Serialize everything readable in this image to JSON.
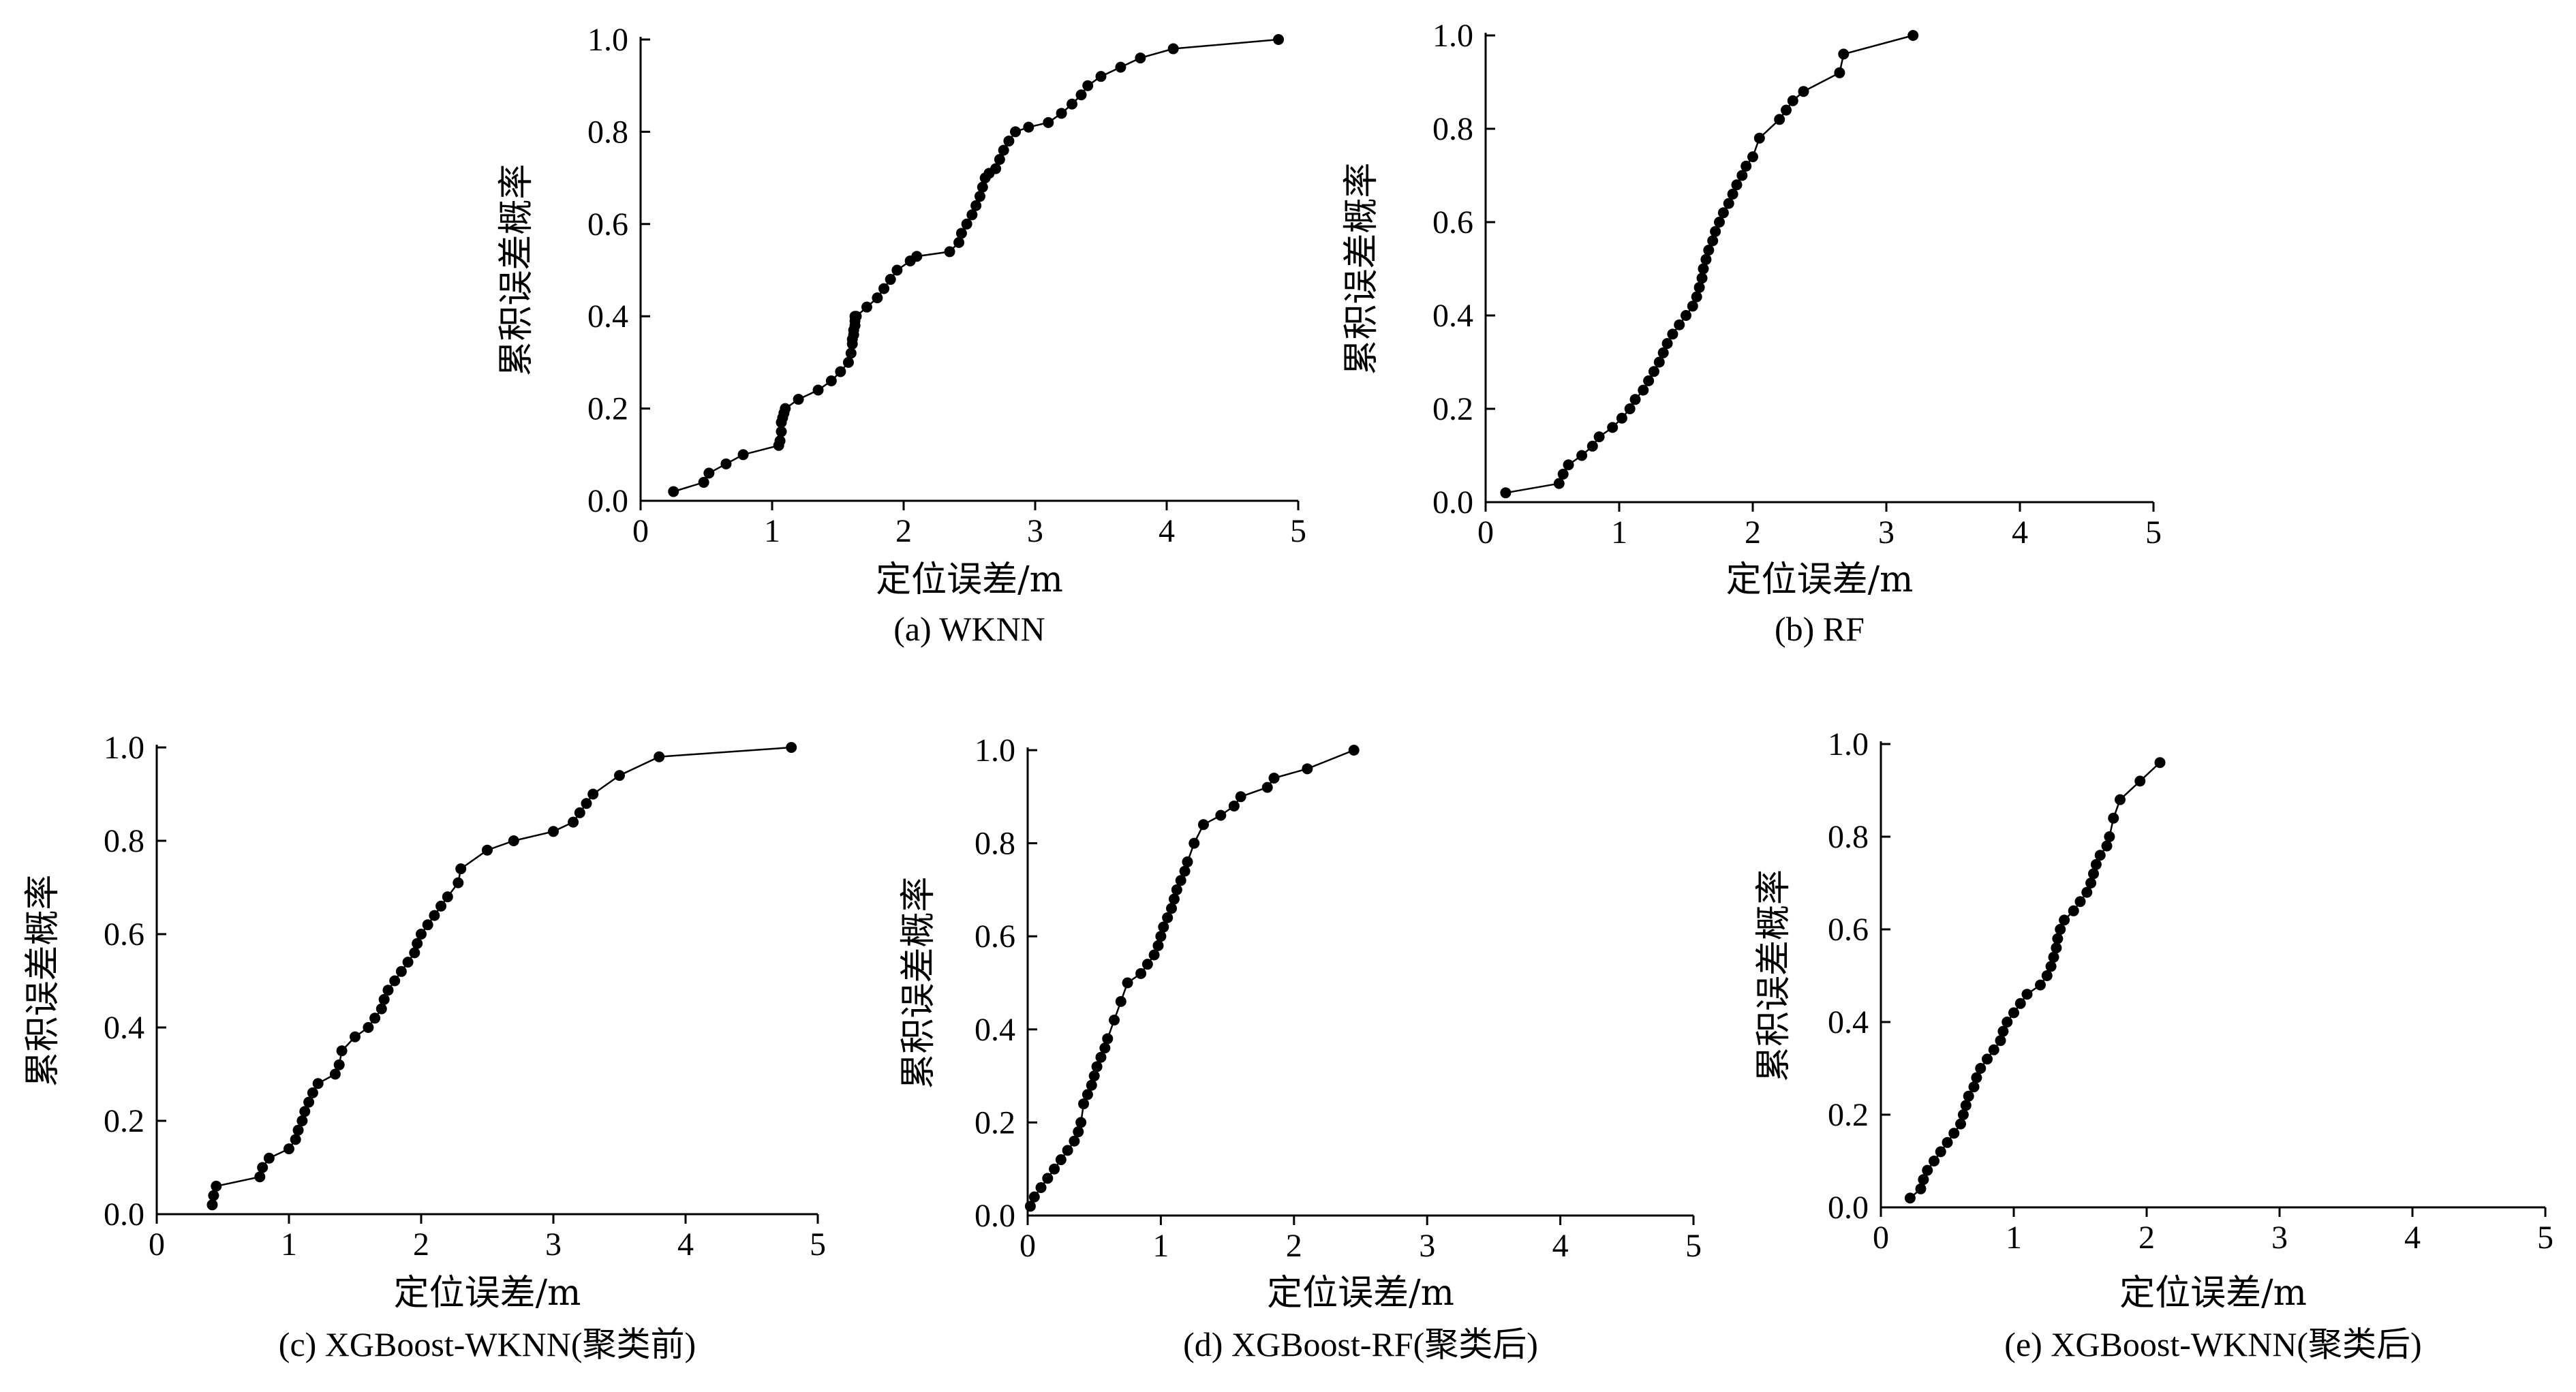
{
  "chart_data": [
    {
      "type": "line",
      "caption": "(a) WKNN",
      "xlabel": "定位误差/m",
      "ylabel": "累积误差概率",
      "xlim": [
        0,
        5
      ],
      "ylim": [
        0,
        1
      ],
      "xticks": [
        "0",
        "1",
        "2",
        "3",
        "4",
        "5"
      ],
      "yticks": [
        "0.0",
        "0.2",
        "0.4",
        "0.6",
        "0.8",
        "1.0"
      ],
      "marker": "circle",
      "series": [
        {
          "x": [
            0.25,
            0.48,
            0.52,
            0.65,
            0.78,
            1.05,
            1.06,
            1.07,
            1.07,
            1.08,
            1.09,
            1.1,
            1.2,
            1.35,
            1.45,
            1.52,
            1.58,
            1.6,
            1.61,
            1.61,
            1.62,
            1.62,
            1.63,
            1.63,
            1.63,
            1.64,
            1.72,
            1.8,
            1.85,
            1.9,
            1.95,
            2.05,
            2.1,
            2.35,
            2.42,
            2.44,
            2.48,
            2.52,
            2.55,
            2.58,
            2.6,
            2.62,
            2.65,
            2.7,
            2.73,
            2.76,
            2.8,
            2.85,
            2.95,
            3.1,
            3.2,
            3.28,
            3.35,
            3.4,
            3.5,
            3.65,
            3.8,
            4.05,
            4.85
          ],
          "y": [
            0.02,
            0.04,
            0.06,
            0.08,
            0.1,
            0.12,
            0.13,
            0.15,
            0.17,
            0.18,
            0.19,
            0.2,
            0.22,
            0.24,
            0.26,
            0.28,
            0.3,
            0.32,
            0.34,
            0.35,
            0.36,
            0.37,
            0.38,
            0.39,
            0.4,
            0.4,
            0.42,
            0.44,
            0.46,
            0.48,
            0.5,
            0.52,
            0.53,
            0.54,
            0.56,
            0.58,
            0.6,
            0.62,
            0.64,
            0.66,
            0.68,
            0.7,
            0.71,
            0.72,
            0.74,
            0.76,
            0.78,
            0.8,
            0.81,
            0.82,
            0.84,
            0.86,
            0.88,
            0.9,
            0.92,
            0.94,
            0.96,
            0.98,
            1.0
          ]
        }
      ]
    },
    {
      "type": "line",
      "caption": "(b) RF",
      "xlabel": "定位误差/m",
      "ylabel": "累积误差概率",
      "xlim": [
        0,
        5
      ],
      "ylim": [
        0,
        1
      ],
      "xticks": [
        "0",
        "1",
        "2",
        "3",
        "4",
        "5"
      ],
      "yticks": [
        "0.0",
        "0.2",
        "0.4",
        "0.6",
        "0.8",
        "1.0"
      ],
      "marker": "circle",
      "series": [
        {
          "x": [
            0.15,
            0.55,
            0.58,
            0.62,
            0.72,
            0.8,
            0.85,
            0.95,
            1.02,
            1.08,
            1.12,
            1.18,
            1.22,
            1.26,
            1.3,
            1.33,
            1.36,
            1.4,
            1.45,
            1.5,
            1.55,
            1.58,
            1.6,
            1.62,
            1.63,
            1.65,
            1.67,
            1.7,
            1.72,
            1.75,
            1.78,
            1.82,
            1.85,
            1.88,
            1.92,
            1.95,
            2.0,
            2.05,
            2.2,
            2.25,
            2.3,
            2.38,
            2.65,
            2.68,
            3.2
          ],
          "y": [
            0.02,
            0.04,
            0.06,
            0.08,
            0.1,
            0.12,
            0.14,
            0.16,
            0.18,
            0.2,
            0.22,
            0.24,
            0.26,
            0.28,
            0.3,
            0.32,
            0.34,
            0.36,
            0.38,
            0.4,
            0.42,
            0.44,
            0.46,
            0.48,
            0.5,
            0.52,
            0.54,
            0.56,
            0.58,
            0.6,
            0.62,
            0.64,
            0.66,
            0.68,
            0.7,
            0.72,
            0.74,
            0.78,
            0.82,
            0.84,
            0.86,
            0.88,
            0.92,
            0.96,
            1.0
          ]
        }
      ]
    },
    {
      "type": "line",
      "caption": "(c) XGBoost-WKNN(聚类前)",
      "xlabel": "定位误差/m",
      "ylabel": "累积误差概率",
      "xlim": [
        0,
        5
      ],
      "ylim": [
        0,
        1
      ],
      "xticks": [
        "0",
        "1",
        "2",
        "3",
        "4",
        "5"
      ],
      "yticks": [
        "0.0",
        "0.2",
        "0.4",
        "0.6",
        "0.8",
        "1.0"
      ],
      "marker": "circle",
      "series": [
        {
          "x": [
            0.42,
            0.43,
            0.45,
            0.78,
            0.8,
            0.85,
            1.0,
            1.05,
            1.07,
            1.1,
            1.12,
            1.15,
            1.18,
            1.22,
            1.35,
            1.38,
            1.4,
            1.5,
            1.6,
            1.65,
            1.7,
            1.72,
            1.75,
            1.8,
            1.85,
            1.9,
            1.95,
            1.97,
            2.0,
            2.05,
            2.1,
            2.15,
            2.2,
            2.28,
            2.3,
            2.5,
            2.7,
            3.0,
            3.15,
            3.2,
            3.25,
            3.3,
            3.5,
            3.8,
            4.8
          ],
          "y": [
            0.02,
            0.04,
            0.06,
            0.08,
            0.1,
            0.12,
            0.14,
            0.16,
            0.18,
            0.2,
            0.22,
            0.24,
            0.26,
            0.28,
            0.3,
            0.32,
            0.35,
            0.38,
            0.4,
            0.42,
            0.44,
            0.46,
            0.48,
            0.5,
            0.52,
            0.54,
            0.56,
            0.58,
            0.6,
            0.62,
            0.64,
            0.66,
            0.68,
            0.71,
            0.74,
            0.78,
            0.8,
            0.82,
            0.84,
            0.86,
            0.88,
            0.9,
            0.94,
            0.98,
            1.0
          ]
        }
      ]
    },
    {
      "type": "line",
      "caption": "(d) XGBoost-RF(聚类后)",
      "xlabel": "定位误差/m",
      "ylabel": "累积误差概率",
      "xlim": [
        0,
        5
      ],
      "ylim": [
        0,
        1
      ],
      "xticks": [
        "0",
        "1",
        "2",
        "3",
        "4",
        "5"
      ],
      "yticks": [
        "0.0",
        "0.2",
        "0.4",
        "0.6",
        "0.8",
        "1.0"
      ],
      "marker": "circle",
      "series": [
        {
          "x": [
            0.02,
            0.05,
            0.1,
            0.15,
            0.2,
            0.25,
            0.3,
            0.35,
            0.38,
            0.4,
            0.42,
            0.45,
            0.48,
            0.5,
            0.52,
            0.55,
            0.58,
            0.6,
            0.65,
            0.7,
            0.75,
            0.85,
            0.9,
            0.95,
            0.98,
            1.0,
            1.02,
            1.05,
            1.08,
            1.1,
            1.12,
            1.15,
            1.18,
            1.2,
            1.25,
            1.32,
            1.45,
            1.55,
            1.6,
            1.8,
            1.85,
            2.1,
            2.45
          ],
          "y": [
            0.02,
            0.04,
            0.06,
            0.08,
            0.1,
            0.12,
            0.14,
            0.16,
            0.18,
            0.2,
            0.24,
            0.26,
            0.28,
            0.3,
            0.32,
            0.34,
            0.36,
            0.38,
            0.42,
            0.46,
            0.5,
            0.52,
            0.54,
            0.56,
            0.58,
            0.6,
            0.62,
            0.64,
            0.66,
            0.68,
            0.7,
            0.72,
            0.74,
            0.76,
            0.8,
            0.84,
            0.86,
            0.88,
            0.9,
            0.92,
            0.94,
            0.96,
            1.0
          ]
        }
      ]
    },
    {
      "type": "line",
      "caption": "(e) XGBoost-WKNN(聚类后)",
      "xlabel": "定位误差/m",
      "ylabel": "累积误差概率",
      "xlim": [
        0,
        5
      ],
      "ylim": [
        0,
        1
      ],
      "xticks": [
        "0",
        "1",
        "2",
        "3",
        "4",
        "5"
      ],
      "yticks": [
        "0.0",
        "0.2",
        "0.4",
        "0.6",
        "0.8",
        "1.0"
      ],
      "marker": "circle",
      "series": [
        {
          "x": [
            0.22,
            0.3,
            0.32,
            0.35,
            0.4,
            0.45,
            0.5,
            0.55,
            0.6,
            0.62,
            0.64,
            0.66,
            0.7,
            0.72,
            0.75,
            0.8,
            0.85,
            0.9,
            0.92,
            0.95,
            1.0,
            1.05,
            1.1,
            1.2,
            1.25,
            1.28,
            1.3,
            1.32,
            1.33,
            1.35,
            1.38,
            1.45,
            1.5,
            1.55,
            1.58,
            1.6,
            1.62,
            1.65,
            1.7,
            1.72,
            1.75,
            1.8,
            1.95,
            2.1
          ],
          "y": [
            0.02,
            0.04,
            0.06,
            0.08,
            0.1,
            0.12,
            0.14,
            0.16,
            0.18,
            0.2,
            0.22,
            0.24,
            0.26,
            0.28,
            0.3,
            0.32,
            0.34,
            0.36,
            0.38,
            0.4,
            0.42,
            0.44,
            0.46,
            0.48,
            0.5,
            0.52,
            0.54,
            0.56,
            0.58,
            0.6,
            0.62,
            0.64,
            0.66,
            0.68,
            0.7,
            0.72,
            0.74,
            0.76,
            0.78,
            0.8,
            0.84,
            0.88,
            0.92,
            0.96
          ]
        }
      ]
    }
  ]
}
